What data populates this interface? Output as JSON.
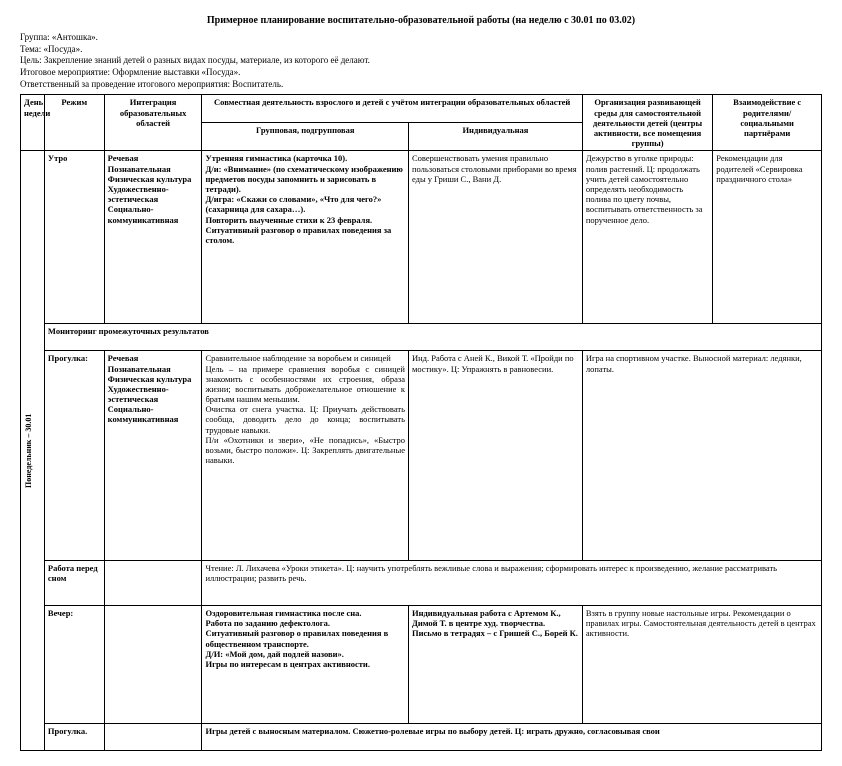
{
  "title": "Примерное планирование воспитательно-образовательной работы (на неделю с 30.01 по 03.02)",
  "meta": {
    "group": "Группа: «Антошка».",
    "theme": "Тема: «Посуда».",
    "goal": "Цель: Закрепление знаний детей о разных видах посуды, материале, из которого её делают.",
    "event": "Итоговое мероприятие: Оформление выставки «Посуда».",
    "resp": "Ответственный за проведение итогового мероприятия: Воспитатель."
  },
  "headers": {
    "day": "День недели",
    "rezh": "Режим",
    "integ": "Интеграция образовательных областей",
    "joint": "Совместная деятельность взрослого и детей с учётом интеграции образовательных областей",
    "group": "Групповая, подгрупповая",
    "indiv": "Индивидуальная",
    "org": "Организация развивающей среды для самостоятельной деятельности детей (центры активности, все помещения группы)",
    "rod": "Взаимодействие с родителями/ социальными партнёрами"
  },
  "daylabel": "Понедельник – 30.01",
  "r1": {
    "rezh": "Утро",
    "integ": "Речевая\nПознавательная\nФизическая культура\nХудожественно-эстетическая\nСоциально-коммуникативная",
    "group": "Утренняя гимнастика (карточка 10).\nД/и: «Внимание» (по схематическому изображению предметов посуды запомнить и зарисовать в тетради).\nД/игра: «Скажи со словами», «Что для чего?» (сахарница для сахара…).\nПовторить выученные стихи к 23 февраля.\nСитуативный разговор о правилах поведения за столом.",
    "indiv": "Совершенствовать умения правильно пользоваться столовыми приборами во время еды у Гриши С., Вани Д.",
    "org": "Дежурство в уголке природы: полив растений. Ц: продолжать учить детей самостоятельно определять необходимость полива по цвету почвы, воспитывать ответственность за порученное дело.",
    "rod": "Рекомендации для родителей «Сервировка праздничного стола»"
  },
  "monitoring": "Мониторинг промежуточных результатов",
  "r2": {
    "rezh": "Прогулка:",
    "integ": "Речевая\nПознавательная\nФизическая культура\nХудожественно-эстетическая\nСоциально-коммуникативная",
    "group": "Сравнительное наблюдение за воробьем и синицей\nЦель – на примере сравнения воробья с синицей знакомить с особенностями их строения, образа жизни; воспитывать доброжелательное отношение к братьям нашим меньшим.\nОчистка от снега участка. Ц: Приучать действовать сообща, доводить дело до конца; воспитывать трудовые навыки.\nП/и «Охотники и звери», «Не попадись», «Быстро возьми, быстро положи». Ц: Закреплять двигательные навыки.",
    "indiv": "Инд. Работа с Аней К., Викой Т. «Пройди по мостику». Ц: Упражнять в равновесии.",
    "org": "Игра на спортивном участке. Выносной материал: ледянки, лопаты."
  },
  "r3": {
    "rezh": "Работа перед сном",
    "group": "Чтение: Л. Лихачева «Уроки этикета». Ц: научить употреблять вежливые слова и выражения; сформировать интерес к произведению, желание рассматривать иллюстрации; развить речь."
  },
  "r4": {
    "rezh": "Вечер:",
    "group": "Оздоровительная гимнастика после сна.\nРабота по заданию дефектолога.\nСитуативный разговор о правилах поведения в общественном транспорте.\nД/И: «Мой дом, дай подлей назови».\nИгры по интересам в центрах активности.",
    "indiv": "Индивидуальная работа с Артемом К., Димой Т. в центре худ. творчества.\nПисьмо в тетрадях – с Гришей С., Борей К.",
    "org": "Взять в группу новые настольные игры. Рекомендации о правилах игры. Самостоятельная деятельность детей в центрах активности."
  },
  "r5": {
    "rezh": "Прогулка.",
    "group": "Игры детей с выносным материалом. Сюжетно-ролевые игры по выбору детей. Ц: играть дружно, согласовывая свои"
  }
}
